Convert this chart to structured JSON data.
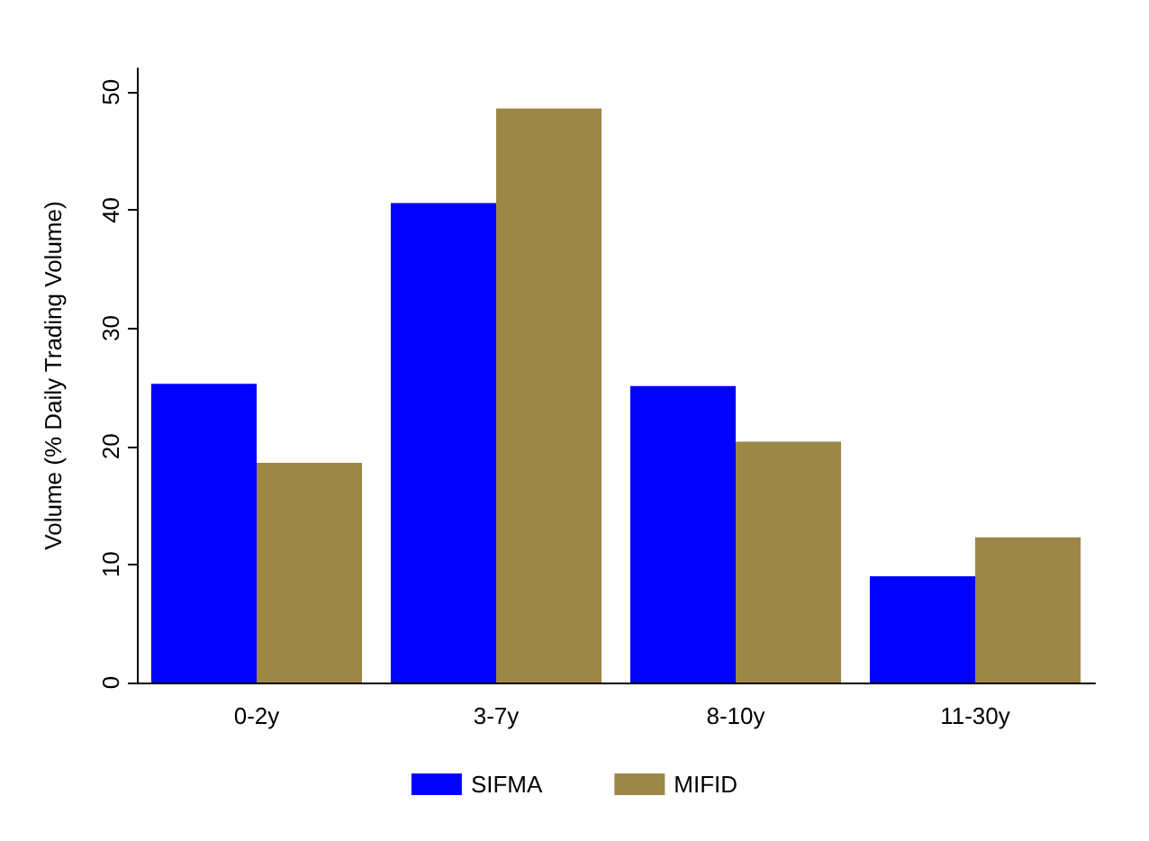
{
  "chart_data": {
    "type": "bar",
    "ylabel": "Volume (% Daily Trading Volume)",
    "categories": [
      "0-2y",
      "3-7y",
      "8-10y",
      "11-30y"
    ],
    "series": [
      {
        "name": "SIFMA",
        "color": "#0000ff",
        "values": [
          25.3,
          40.6,
          25.1,
          9.0
        ]
      },
      {
        "name": "MIFID",
        "color": "#9c8746",
        "values": [
          18.6,
          48.6,
          20.4,
          12.3
        ]
      }
    ],
    "ylim": [
      0,
      52
    ],
    "yticks": [
      0,
      10,
      20,
      30,
      40,
      50
    ],
    "grid": false,
    "legend": "bottom"
  }
}
